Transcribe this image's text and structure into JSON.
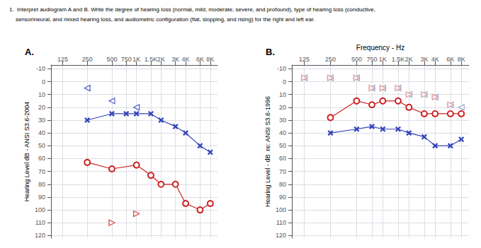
{
  "title": [
    "1.  Interpret audiogram A and B. Write the degree of hearing loss (normal, mild, moderate, severe, and profound), type of hearing loss (conductive,",
    "    sensorineural, and mixed hearing loss, and audiometric configuration (flat, slopping, and rising) for the right and left ear."
  ],
  "chart_data": [
    {
      "type": "line",
      "title": "A.",
      "ylabel": "Hearing Level dB - ANSI S3.6-2004",
      "log": "x",
      "xlim": [
        90,
        9800
      ],
      "xticks": [
        125,
        250,
        500,
        {
          "value": 1000,
          "label": "1K"
        },
        {
          "value": 2000,
          "label": "2K"
        },
        {
          "value": 4000,
          "label": "4K"
        },
        {
          "value": 8000,
          "label": "8K"
        },
        750,
        {
          "value": 1500,
          "label": "1.5K"
        },
        {
          "value": 3000,
          "label": "3K"
        },
        {
          "value": 6000,
          "label": "6K"
        }
      ],
      "ylim": [
        122,
        -13
      ],
      "yticks": [
        -10,
        0,
        10,
        20,
        30,
        40,
        50,
        60,
        70,
        80,
        90,
        100,
        110,
        120
      ],
      "grid": true,
      "series": [
        {
          "type": "line",
          "color": "#3344bb",
          "marker": "x",
          "x": [
            250,
            500,
            750,
            1000,
            1500,
            2000,
            3000,
            4000,
            6000,
            8000
          ],
          "values": [
            30,
            25,
            25,
            25,
            25,
            30,
            35,
            40,
            50,
            55
          ]
        },
        {
          "type": "scatter",
          "color": "#3344bb",
          "marker": "<",
          "x": [
            250,
            500,
            1000
          ],
          "values": [
            5,
            15,
            20
          ]
        },
        {
          "type": "line",
          "color": "#cc2222",
          "marker": "o",
          "x": [
            250,
            500,
            1000,
            1500,
            2000,
            3000,
            4000,
            6000,
            8000
          ],
          "values": [
            63,
            68,
            65,
            73,
            80,
            80,
            95,
            100,
            95
          ]
        },
        {
          "type": "scatter",
          "color": "#cc2222",
          "marker": ">",
          "x": [
            500,
            1000
          ],
          "values": [
            110,
            103
          ]
        }
      ]
    },
    {
      "type": "line",
      "title": "B.",
      "xlabel": "Frequency - Hz",
      "ylabel": "Hearing Level - dB  re: ANSI S3.6-1996",
      "log": "x",
      "xlim": [
        90,
        9800
      ],
      "xticks": [
        125,
        250,
        500,
        {
          "value": 1000,
          "label": "1K"
        },
        {
          "value": 2000,
          "label": "2K"
        },
        {
          "value": 4000,
          "label": "4K"
        },
        {
          "value": 8000,
          "label": "8K"
        },
        750,
        {
          "value": 1500,
          "label": "1.5K"
        },
        {
          "value": 3000,
          "label": "3K"
        },
        {
          "value": 6000,
          "label": "6K"
        }
      ],
      "ylim": [
        122,
        -13
      ],
      "yticks": [
        -10,
        0,
        10,
        20,
        30,
        40,
        50,
        60,
        70,
        80,
        90,
        100,
        110,
        120
      ],
      "grid": true,
      "series": [
        {
          "type": "line",
          "color": "#3344bb",
          "marker": "x",
          "x": [
            250,
            500,
            750,
            1000,
            1500,
            2000,
            3000,
            4000,
            6000,
            8000
          ],
          "values": [
            40,
            37,
            35,
            37,
            37,
            40,
            43,
            50,
            50,
            45
          ]
        },
        {
          "type": "scatter",
          "color": "#8899cc",
          "marker": "<",
          "x": [
            125,
            250,
            500,
            750,
            1000,
            1500,
            2000,
            3000,
            4000,
            6000,
            8000
          ],
          "values": [
            -3,
            -3,
            -3,
            5,
            5,
            5,
            10,
            10,
            12,
            18,
            20
          ]
        },
        {
          "type": "line",
          "color": "#cc2222",
          "marker": "o",
          "x": [
            250,
            500,
            750,
            1000,
            1500,
            2000,
            3000,
            4000,
            6000,
            8000
          ],
          "values": [
            28,
            15,
            18,
            15,
            15,
            20,
            25,
            25,
            25,
            25
          ]
        },
        {
          "type": "scatter",
          "color": "#dd8888",
          "marker": ">",
          "x": [
            125,
            250,
            500,
            750,
            1000,
            1500,
            2000,
            3000,
            4000,
            6000
          ],
          "values": [
            -3,
            -3,
            -3,
            5,
            5,
            5,
            10,
            10,
            12,
            18
          ]
        }
      ]
    }
  ]
}
